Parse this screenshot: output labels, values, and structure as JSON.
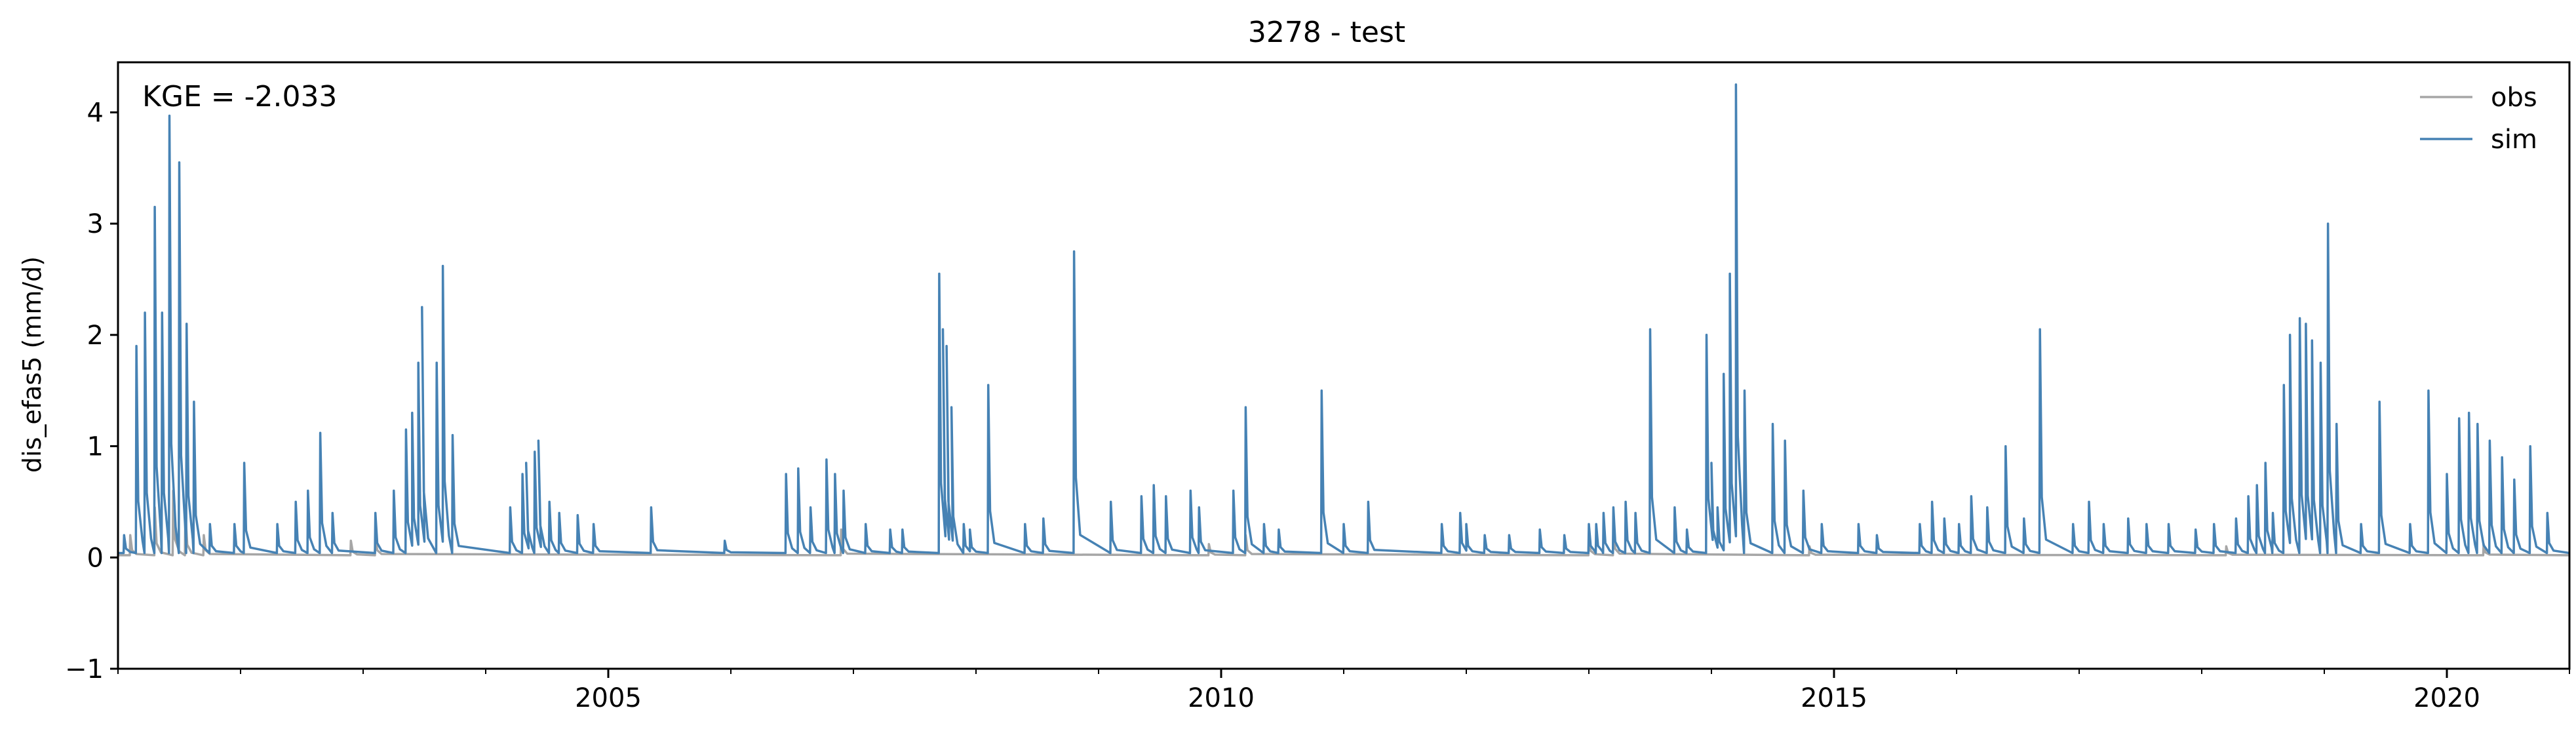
{
  "chart_data": {
    "type": "line",
    "title": "3278 - test",
    "xlabel": "",
    "ylabel": "dis_efas5 (mm/d)",
    "annotation": "KGE = -2.033",
    "xlim": [
      2001.0,
      2021.0
    ],
    "ylim": [
      -1,
      4.45
    ],
    "x_ticks": [
      2005,
      2010,
      2015,
      2020
    ],
    "x_tick_labels": [
      "2005",
      "2010",
      "2015",
      "2020"
    ],
    "y_ticks": [
      -1,
      0,
      1,
      2,
      3,
      4
    ],
    "y_tick_labels": [
      "−1",
      "0",
      "1",
      "2",
      "3",
      "4"
    ],
    "grid": false,
    "legend_position": "top-right",
    "series": [
      {
        "name": "obs",
        "color": "#a6a6a6",
        "baseline": 0.02,
        "peaks": [
          [
            2001.1,
            0.2
          ],
          [
            2001.3,
            0.45
          ],
          [
            2001.45,
            0.6
          ],
          [
            2001.55,
            0.4
          ],
          [
            2001.7,
            0.2
          ],
          [
            2002.9,
            0.15
          ],
          [
            2003.1,
            0.2
          ],
          [
            2006.9,
            0.25
          ],
          [
            2009.9,
            0.12
          ],
          [
            2010.2,
            0.2
          ],
          [
            2013.0,
            0.18
          ],
          [
            2013.2,
            0.25
          ],
          [
            2014.8,
            0.1
          ],
          [
            2018.2,
            0.1
          ],
          [
            2020.3,
            0.12
          ]
        ]
      },
      {
        "name": "sim",
        "color": "#4682b4",
        "baseline": 0.04,
        "peaks": [
          [
            2001.05,
            0.2
          ],
          [
            2001.15,
            1.9
          ],
          [
            2001.22,
            2.2
          ],
          [
            2001.3,
            3.15
          ],
          [
            2001.36,
            2.2
          ],
          [
            2001.42,
            3.97
          ],
          [
            2001.5,
            3.55
          ],
          [
            2001.56,
            2.1
          ],
          [
            2001.62,
            1.4
          ],
          [
            2001.75,
            0.3
          ],
          [
            2001.95,
            0.3
          ],
          [
            2002.03,
            0.85
          ],
          [
            2002.3,
            0.3
          ],
          [
            2002.45,
            0.5
          ],
          [
            2002.55,
            0.6
          ],
          [
            2002.65,
            1.12
          ],
          [
            2002.75,
            0.4
          ],
          [
            2003.1,
            0.4
          ],
          [
            2003.25,
            0.6
          ],
          [
            2003.35,
            1.15
          ],
          [
            2003.4,
            1.3
          ],
          [
            2003.45,
            1.75
          ],
          [
            2003.48,
            2.25
          ],
          [
            2003.6,
            1.75
          ],
          [
            2003.65,
            2.62
          ],
          [
            2003.73,
            1.1
          ],
          [
            2004.2,
            0.45
          ],
          [
            2004.3,
            0.75
          ],
          [
            2004.33,
            0.85
          ],
          [
            2004.4,
            0.95
          ],
          [
            2004.43,
            1.05
          ],
          [
            2004.52,
            0.5
          ],
          [
            2004.6,
            0.4
          ],
          [
            2004.75,
            0.38
          ],
          [
            2004.88,
            0.3
          ],
          [
            2005.35,
            0.45
          ],
          [
            2005.95,
            0.15
          ],
          [
            2006.45,
            0.75
          ],
          [
            2006.55,
            0.8
          ],
          [
            2006.65,
            0.45
          ],
          [
            2006.78,
            0.88
          ],
          [
            2006.85,
            0.75
          ],
          [
            2006.92,
            0.6
          ],
          [
            2007.1,
            0.3
          ],
          [
            2007.3,
            0.25
          ],
          [
            2007.4,
            0.25
          ],
          [
            2007.7,
            2.55
          ],
          [
            2007.73,
            2.05
          ],
          [
            2007.76,
            1.9
          ],
          [
            2007.8,
            1.35
          ],
          [
            2007.9,
            0.3
          ],
          [
            2007.95,
            0.25
          ],
          [
            2008.1,
            1.55
          ],
          [
            2008.4,
            0.3
          ],
          [
            2008.55,
            0.35
          ],
          [
            2008.8,
            2.75
          ],
          [
            2009.1,
            0.5
          ],
          [
            2009.35,
            0.55
          ],
          [
            2009.45,
            0.65
          ],
          [
            2009.55,
            0.55
          ],
          [
            2009.75,
            0.6
          ],
          [
            2009.82,
            0.45
          ],
          [
            2010.1,
            0.6
          ],
          [
            2010.2,
            1.35
          ],
          [
            2010.35,
            0.3
          ],
          [
            2010.47,
            0.25
          ],
          [
            2010.82,
            1.5
          ],
          [
            2011.0,
            0.3
          ],
          [
            2011.2,
            0.5
          ],
          [
            2011.8,
            0.3
          ],
          [
            2011.95,
            0.4
          ],
          [
            2012.0,
            0.3
          ],
          [
            2012.15,
            0.2
          ],
          [
            2012.35,
            0.2
          ],
          [
            2012.6,
            0.25
          ],
          [
            2012.8,
            0.2
          ],
          [
            2013.0,
            0.3
          ],
          [
            2013.06,
            0.3
          ],
          [
            2013.12,
            0.4
          ],
          [
            2013.2,
            0.45
          ],
          [
            2013.3,
            0.5
          ],
          [
            2013.38,
            0.4
          ],
          [
            2013.5,
            2.05
          ],
          [
            2013.7,
            0.45
          ],
          [
            2013.8,
            0.25
          ],
          [
            2013.96,
            2.0
          ],
          [
            2014.0,
            0.85
          ],
          [
            2014.05,
            0.45
          ],
          [
            2014.1,
            1.65
          ],
          [
            2014.15,
            2.55
          ],
          [
            2014.2,
            4.25
          ],
          [
            2014.27,
            1.5
          ],
          [
            2014.5,
            1.2
          ],
          [
            2014.6,
            1.05
          ],
          [
            2014.75,
            0.6
          ],
          [
            2014.9,
            0.3
          ],
          [
            2015.2,
            0.3
          ],
          [
            2015.35,
            0.2
          ],
          [
            2015.7,
            0.3
          ],
          [
            2015.8,
            0.5
          ],
          [
            2015.9,
            0.35
          ],
          [
            2016.02,
            0.3
          ],
          [
            2016.12,
            0.55
          ],
          [
            2016.25,
            0.45
          ],
          [
            2016.4,
            1.0
          ],
          [
            2016.55,
            0.35
          ],
          [
            2016.68,
            2.05
          ],
          [
            2016.95,
            0.3
          ],
          [
            2017.08,
            0.5
          ],
          [
            2017.2,
            0.3
          ],
          [
            2017.4,
            0.35
          ],
          [
            2017.55,
            0.3
          ],
          [
            2017.73,
            0.3
          ],
          [
            2017.95,
            0.25
          ],
          [
            2018.1,
            0.3
          ],
          [
            2018.28,
            0.35
          ],
          [
            2018.38,
            0.55
          ],
          [
            2018.45,
            0.65
          ],
          [
            2018.52,
            0.85
          ],
          [
            2018.58,
            0.4
          ],
          [
            2018.67,
            1.55
          ],
          [
            2018.72,
            2.0
          ],
          [
            2018.8,
            2.15
          ],
          [
            2018.85,
            2.1
          ],
          [
            2018.9,
            1.95
          ],
          [
            2018.97,
            1.75
          ],
          [
            2019.03,
            3.0
          ],
          [
            2019.1,
            1.2
          ],
          [
            2019.3,
            0.3
          ],
          [
            2019.45,
            1.4
          ],
          [
            2019.7,
            0.3
          ],
          [
            2019.85,
            1.5
          ],
          [
            2020.0,
            0.75
          ],
          [
            2020.1,
            1.25
          ],
          [
            2020.18,
            1.3
          ],
          [
            2020.25,
            1.2
          ],
          [
            2020.35,
            1.05
          ],
          [
            2020.45,
            0.9
          ],
          [
            2020.55,
            0.7
          ],
          [
            2020.68,
            1.0
          ],
          [
            2020.82,
            0.4
          ]
        ]
      }
    ]
  }
}
